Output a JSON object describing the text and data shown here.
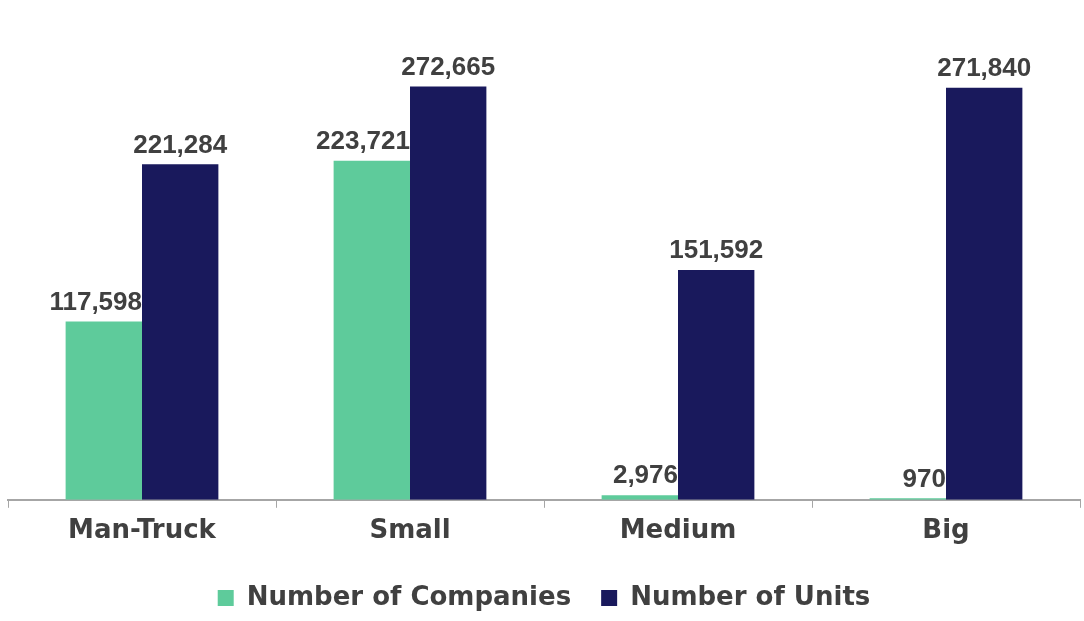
{
  "chart_data": {
    "type": "bar",
    "categories": [
      "Man-Truck",
      "Small",
      "Medium",
      "Big"
    ],
    "series": [
      {
        "name": "Number of Companies",
        "color": "#5ecb9b",
        "values": [
          117598,
          223721,
          2976,
          970
        ],
        "value_labels": [
          "117,598",
          "223,721",
          "2,976",
          "970"
        ]
      },
      {
        "name": "Number of Units",
        "color": "#19195c",
        "values": [
          221284,
          272665,
          151592,
          271840
        ],
        "value_labels": [
          "221,284",
          "272,665",
          "151,592",
          "271,840"
        ]
      }
    ],
    "legend": "bottom"
  }
}
